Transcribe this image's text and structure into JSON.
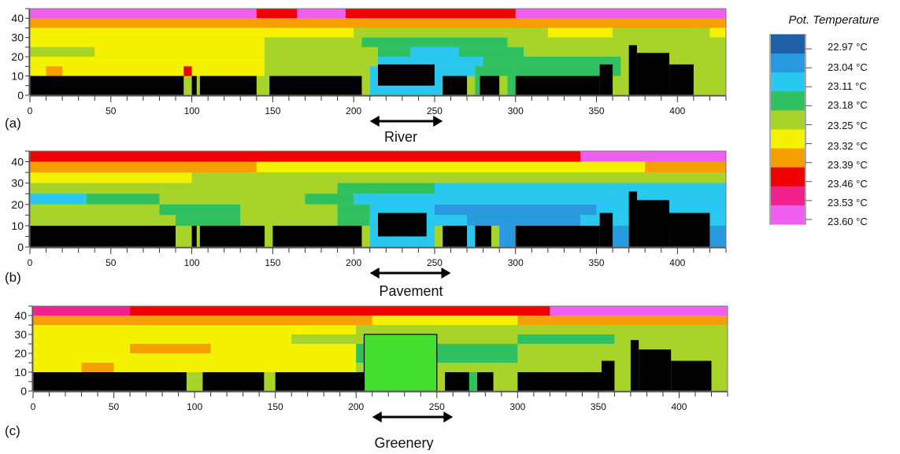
{
  "chart_data": [
    {
      "type": "heatmap",
      "panel_label": "(a)",
      "scenario_label": "River",
      "xlim": [
        0,
        430
      ],
      "ylim": [
        0,
        45
      ],
      "x_ticks": [
        0,
        50,
        100,
        150,
        200,
        250,
        300,
        350,
        400
      ],
      "y_ticks": [
        0,
        10,
        20,
        30,
        40
      ],
      "arrow_x_range": [
        210,
        255
      ],
      "layers": [
        {
          "y": [
            40,
            45
          ],
          "segments": [
            [
              0,
              140,
              23.57
            ],
            [
              140,
              165,
              23.47
            ],
            [
              165,
              195,
              23.57
            ],
            [
              195,
              300,
              23.47
            ],
            [
              300,
              430,
              23.57
            ]
          ]
        },
        {
          "y": [
            35,
            40
          ],
          "segments": [
            [
              0,
              125,
              23.39
            ],
            [
              125,
              250,
              23.36
            ],
            [
              250,
              330,
              23.39
            ],
            [
              330,
              410,
              23.36
            ],
            [
              410,
              430,
              23.39
            ]
          ]
        },
        {
          "y": [
            30,
            35
          ],
          "segments": [
            [
              0,
              150,
              23.32
            ],
            [
              150,
              200,
              23.3
            ],
            [
              200,
              320,
              23.26
            ],
            [
              320,
              360,
              23.3
            ],
            [
              360,
              420,
              23.27
            ],
            [
              420,
              430,
              23.33
            ]
          ]
        },
        {
          "y": [
            25,
            30
          ],
          "segments": [
            [
              0,
              145,
              23.32
            ],
            [
              145,
              205,
              23.27
            ],
            [
              205,
              295,
              23.2
            ],
            [
              295,
              350,
              23.24
            ],
            [
              350,
              430,
              23.27
            ]
          ]
        },
        {
          "y": [
            20,
            25
          ],
          "segments": [
            [
              0,
              12,
              23.28
            ],
            [
              12,
              40,
              23.23
            ],
            [
              40,
              145,
              23.31
            ],
            [
              145,
              195,
              23.27
            ],
            [
              195,
              215,
              23.22
            ],
            [
              215,
              235,
              23.17
            ],
            [
              235,
              265,
              23.1
            ],
            [
              265,
              305,
              23.17
            ],
            [
              305,
              365,
              23.22
            ],
            [
              365,
              430,
              23.25
            ]
          ]
        },
        {
          "y": [
            15,
            20
          ],
          "segments": [
            [
              0,
              145,
              23.31
            ],
            [
              145,
              190,
              23.27
            ],
            [
              190,
              215,
              23.22
            ],
            [
              215,
              280,
              23.1
            ],
            [
              280,
              300,
              23.17
            ],
            [
              300,
              365,
              23.21
            ],
            [
              365,
              430,
              23.25
            ]
          ]
        },
        {
          "y": [
            10,
            15
          ],
          "segments": [
            [
              0,
              10,
              23.31
            ],
            [
              10,
              20,
              23.38
            ],
            [
              20,
              95,
              23.3
            ],
            [
              95,
              100,
              23.47
            ],
            [
              100,
              145,
              23.3
            ],
            [
              145,
              190,
              23.27
            ],
            [
              190,
              210,
              23.22
            ],
            [
              210,
              275,
              23.1
            ],
            [
              275,
              300,
              23.17
            ],
            [
              300,
              365,
              23.21
            ],
            [
              365,
              430,
              23.25
            ]
          ]
        },
        {
          "y": [
            0,
            10
          ],
          "segments": [
            [
              210,
              255,
              23.1
            ],
            [
              255,
              265,
              23.15
            ],
            [
              275,
              285,
              23.15
            ],
            [
              295,
              300,
              23.2
            ],
            [
              360,
              370,
              23.22
            ],
            [
              410,
              430,
              23.25
            ]
          ]
        }
      ],
      "buildings": [
        [
          0,
          95,
          0,
          10
        ],
        [
          100,
          103,
          0,
          10
        ],
        [
          105,
          140,
          0,
          10
        ],
        [
          148,
          205,
          0,
          10
        ],
        [
          215,
          250,
          5,
          16
        ],
        [
          255,
          270,
          0,
          10
        ],
        [
          278,
          290,
          0,
          10
        ],
        [
          300,
          352,
          0,
          10
        ],
        [
          352,
          360,
          0,
          16
        ],
        [
          370,
          375,
          0,
          26
        ],
        [
          375,
          395,
          0,
          22
        ],
        [
          395,
          410,
          0,
          16
        ]
      ]
    },
    {
      "type": "heatmap",
      "panel_label": "(b)",
      "scenario_label": "Pavement",
      "xlim": [
        0,
        430
      ],
      "ylim": [
        0,
        45
      ],
      "x_ticks": [
        0,
        50,
        100,
        150,
        200,
        250,
        300,
        350,
        400
      ],
      "y_ticks": [
        0,
        10,
        20,
        30,
        40
      ],
      "arrow_x_range": [
        210,
        260
      ],
      "layers": [
        {
          "y": [
            40,
            45
          ],
          "segments": [
            [
              0,
              340,
              23.47
            ],
            [
              340,
              430,
              23.57
            ]
          ]
        },
        {
          "y": [
            35,
            40
          ],
          "segments": [
            [
              0,
              140,
              23.38
            ],
            [
              140,
              380,
              23.34
            ],
            [
              380,
              430,
              23.4
            ]
          ]
        },
        {
          "y": [
            30,
            35
          ],
          "segments": [
            [
              0,
              100,
              23.3
            ],
            [
              100,
              280,
              23.27
            ],
            [
              280,
              430,
              23.22
            ]
          ]
        },
        {
          "y": [
            25,
            30
          ],
          "segments": [
            [
              0,
              80,
              23.27
            ],
            [
              80,
              190,
              23.25
            ],
            [
              190,
              250,
              23.19
            ],
            [
              250,
              340,
              23.09
            ],
            [
              340,
              430,
              23.11
            ]
          ]
        },
        {
          "y": [
            20,
            25
          ],
          "segments": [
            [
              0,
              35,
              23.11
            ],
            [
              35,
              80,
              23.2
            ],
            [
              80,
              170,
              23.24
            ],
            [
              170,
              200,
              23.18
            ],
            [
              200,
              240,
              23.14
            ],
            [
              240,
              360,
              23.08
            ],
            [
              360,
              380,
              23.11
            ],
            [
              380,
              430,
              23.09
            ]
          ]
        },
        {
          "y": [
            15,
            20
          ],
          "segments": [
            [
              0,
              80,
              23.24
            ],
            [
              80,
              130,
              23.21
            ],
            [
              130,
              190,
              23.24
            ],
            [
              190,
              210,
              23.17
            ],
            [
              210,
              250,
              23.12
            ],
            [
              250,
              350,
              23.06
            ],
            [
              350,
              430,
              23.09
            ]
          ]
        },
        {
          "y": [
            10,
            15
          ],
          "segments": [
            [
              0,
              90,
              23.25
            ],
            [
              90,
              130,
              23.21
            ],
            [
              130,
              190,
              23.24
            ],
            [
              190,
              210,
              23.17
            ],
            [
              210,
              270,
              23.12
            ],
            [
              270,
              340,
              23.06
            ],
            [
              340,
              430,
              23.08
            ]
          ]
        },
        {
          "y": [
            0,
            10
          ],
          "segments": [
            [
              210,
              250,
              23.08
            ],
            [
              250,
              255,
              23.24
            ],
            [
              270,
              275,
              23.12
            ],
            [
              290,
              300,
              23.06
            ],
            [
              360,
              370,
              23.06
            ],
            [
              420,
              430,
              23.06
            ]
          ]
        }
      ],
      "buildings": [
        [
          0,
          90,
          0,
          10
        ],
        [
          100,
          103,
          0,
          10
        ],
        [
          105,
          145,
          0,
          10
        ],
        [
          150,
          205,
          0,
          10
        ],
        [
          215,
          245,
          5,
          16
        ],
        [
          255,
          270,
          0,
          10
        ],
        [
          275,
          285,
          0,
          10
        ],
        [
          300,
          352,
          0,
          10
        ],
        [
          352,
          360,
          0,
          16
        ],
        [
          370,
          375,
          0,
          26
        ],
        [
          375,
          395,
          0,
          22
        ],
        [
          395,
          420,
          0,
          16
        ]
      ]
    },
    {
      "type": "heatmap",
      "panel_label": "(c)",
      "scenario_label": "Greenery",
      "xlim": [
        0,
        430
      ],
      "ylim": [
        0,
        45
      ],
      "x_ticks": [
        0,
        50,
        100,
        150,
        200,
        250,
        300,
        350,
        400
      ],
      "y_ticks": [
        0,
        10,
        20,
        30,
        40
      ],
      "arrow_x_range": [
        210,
        260
      ],
      "layers": [
        {
          "y": [
            40,
            45
          ],
          "segments": [
            [
              0,
              60,
              23.55
            ],
            [
              60,
              320,
              23.47
            ],
            [
              320,
              430,
              23.57
            ]
          ]
        },
        {
          "y": [
            35,
            40
          ],
          "segments": [
            [
              0,
              100,
              23.41
            ],
            [
              100,
              210,
              23.38
            ],
            [
              210,
              300,
              23.34
            ],
            [
              300,
              430,
              23.38
            ]
          ]
        },
        {
          "y": [
            30,
            35
          ],
          "segments": [
            [
              0,
              160,
              23.32
            ],
            [
              160,
              200,
              23.3
            ],
            [
              200,
              330,
              23.25
            ],
            [
              330,
              430,
              23.28
            ]
          ]
        },
        {
          "y": [
            25,
            30
          ],
          "segments": [
            [
              0,
              160,
              23.31
            ],
            [
              160,
              200,
              23.27
            ],
            [
              200,
              300,
              23.22
            ],
            [
              300,
              360,
              23.2
            ],
            [
              360,
              430,
              23.26
            ]
          ]
        },
        {
          "y": [
            20,
            25
          ],
          "segments": [
            [
              0,
              60,
              23.29
            ],
            [
              60,
              110,
              23.4
            ],
            [
              110,
              200,
              23.31
            ],
            [
              200,
              300,
              23.2
            ],
            [
              300,
              430,
              23.24
            ]
          ]
        },
        {
          "y": [
            15,
            20
          ],
          "segments": [
            [
              0,
              200,
              23.3
            ],
            [
              200,
              300,
              23.21
            ],
            [
              300,
              430,
              23.24
            ]
          ]
        },
        {
          "y": [
            10,
            15
          ],
          "segments": [
            [
              0,
              30,
              23.3
            ],
            [
              30,
              50,
              23.39
            ],
            [
              50,
              200,
              23.3
            ],
            [
              200,
              300,
              23.22
            ],
            [
              300,
              430,
              23.25
            ]
          ]
        },
        {
          "y": [
            0,
            10
          ],
          "segments": [
            [
              260,
              265,
              23.12
            ],
            [
              270,
              275,
              23.2
            ],
            [
              290,
              300,
              23.22
            ],
            [
              360,
              370,
              23.25
            ],
            [
              420,
              430,
              23.25
            ]
          ]
        }
      ],
      "buildings": [
        [
          0,
          95,
          0,
          10
        ],
        [
          105,
          143,
          0,
          10
        ],
        [
          150,
          205,
          0,
          10
        ],
        [
          255,
          270,
          0,
          10
        ],
        [
          275,
          285,
          0,
          10
        ],
        [
          300,
          352,
          0,
          10
        ],
        [
          352,
          360,
          0,
          16
        ],
        [
          370,
          375,
          0,
          27
        ],
        [
          375,
          395,
          0,
          22
        ],
        [
          395,
          420,
          0,
          16
        ]
      ],
      "vegetation": [
        [
          205,
          250,
          0,
          30
        ]
      ]
    }
  ],
  "legend": {
    "title": "Pot. Temperature",
    "entries": [
      "22.97 °C",
      "23.04 °C",
      "23.11 °C",
      "23.18 °C",
      "23.25 °C",
      "23.32 °C",
      "23.39 °C",
      "23.46 °C",
      "23.53 °C",
      "23.60 °C"
    ],
    "values": [
      22.97,
      23.04,
      23.11,
      23.18,
      23.25,
      23.32,
      23.39,
      23.46,
      23.53,
      23.6
    ],
    "colors": [
      "#1f5fa8",
      "#2a9ae0",
      "#28c8f0",
      "#2fc060",
      "#a8d42a",
      "#f5f200",
      "#f5a000",
      "#f00000",
      "#f0208c",
      "#f060f0"
    ]
  },
  "colors": {
    "building": "#000000",
    "vegetation": "#44e030"
  }
}
